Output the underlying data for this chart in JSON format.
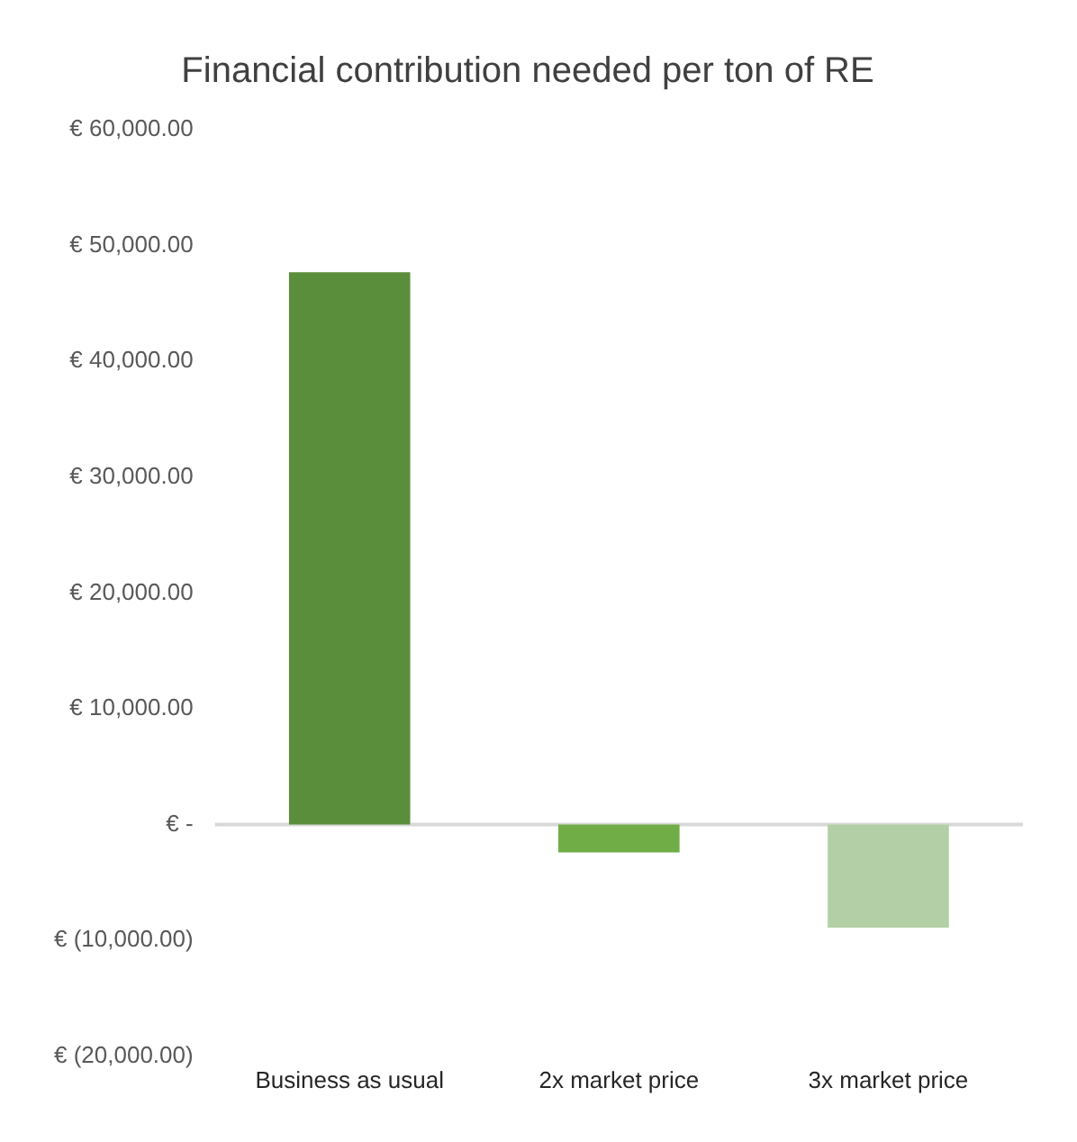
{
  "chart_data": {
    "type": "bar",
    "title": "Financial contribution needed per ton of RE",
    "categories": [
      "Business as usual",
      "2x market price",
      "3x market price"
    ],
    "values": [
      47700,
      -2400,
      -8900
    ],
    "colors": [
      "#5b8e3b",
      "#70ad47",
      "#b3cfa6"
    ],
    "ylim": [
      -20000,
      60000
    ],
    "yticks": [
      {
        "value": -20000,
        "label": "€ (20,000.00)"
      },
      {
        "value": -10000,
        "label": "€ (10,000.00)"
      },
      {
        "value": 0,
        "label": "€ -"
      },
      {
        "value": 10000,
        "label": "€ 10,000.00"
      },
      {
        "value": 20000,
        "label": "€ 20,000.00"
      },
      {
        "value": 30000,
        "label": "€ 30,000.00"
      },
      {
        "value": 40000,
        "label": "€ 40,000.00"
      },
      {
        "value": 50000,
        "label": "€ 50,000.00"
      },
      {
        "value": 60000,
        "label": "€ 60,000.00"
      }
    ],
    "ref_lines": [
      {
        "axis": "y",
        "value": 0,
        "color": "#d9d9d9"
      }
    ],
    "grid": false,
    "legend": false
  }
}
